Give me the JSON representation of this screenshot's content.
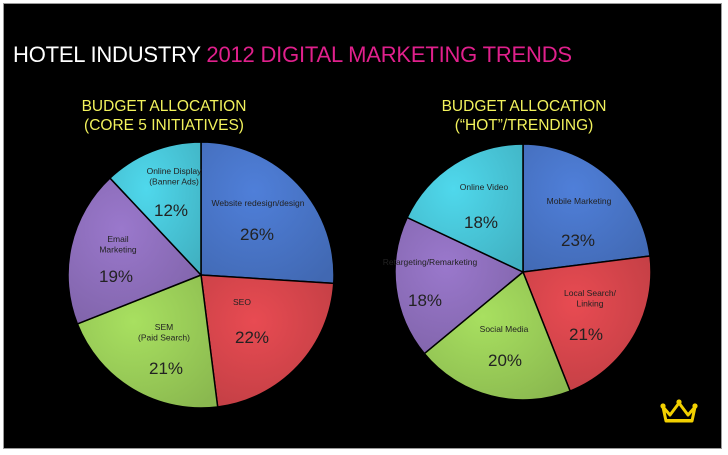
{
  "title": {
    "part1": "HOTEL INDUSTRY",
    "part2": "2012 DIGITAL MARKETING TRENDS",
    "color_part2": "#e0208c"
  },
  "heading_color": "#f2f25c",
  "chart_data": [
    {
      "type": "pie",
      "title": "BUDGET ALLOCATION",
      "subtitle": "(CORE 5 INITIATIVES)",
      "slices": [
        {
          "lines": [
            "Website redesign/design"
          ],
          "value": 26,
          "display": "26%",
          "color": "#4f7fd9"
        },
        {
          "lines": [
            "SEO"
          ],
          "value": 22,
          "display": "22%",
          "color": "#e84b52"
        },
        {
          "lines": [
            "SEM",
            "(Paid Search)"
          ],
          "value": 21,
          "display": "21%",
          "color": "#a8e060"
        },
        {
          "lines": [
            "Email",
            "Marketing"
          ],
          "value": 19,
          "display": "19%",
          "color": "#9a78cc"
        },
        {
          "lines": [
            "Online Display",
            "(Banner Ads)"
          ],
          "value": 12,
          "display": "12%",
          "color": "#4fd8ec"
        }
      ]
    },
    {
      "type": "pie",
      "title": "BUDGET ALLOCATION",
      "subtitle": "(“HOT”/TRENDING)",
      "slices": [
        {
          "lines": [
            "Mobile Marketing"
          ],
          "value": 23,
          "display": "23%",
          "color": "#4f7fd9"
        },
        {
          "lines": [
            "Local Search/",
            "Linking"
          ],
          "value": 21,
          "display": "21%",
          "color": "#e84b52"
        },
        {
          "lines": [
            "Social Media"
          ],
          "value": 20,
          "display": "20%",
          "color": "#a8e060"
        },
        {
          "lines": [
            "Retargeting/Remarketing"
          ],
          "value": 18,
          "display": "18%",
          "color": "#9a78cc"
        },
        {
          "lines": [
            "Online Video"
          ],
          "value": 18,
          "display": "18%",
          "color": "#4fd8ec"
        }
      ]
    }
  ],
  "icons": {
    "logo": "crown-icon"
  }
}
